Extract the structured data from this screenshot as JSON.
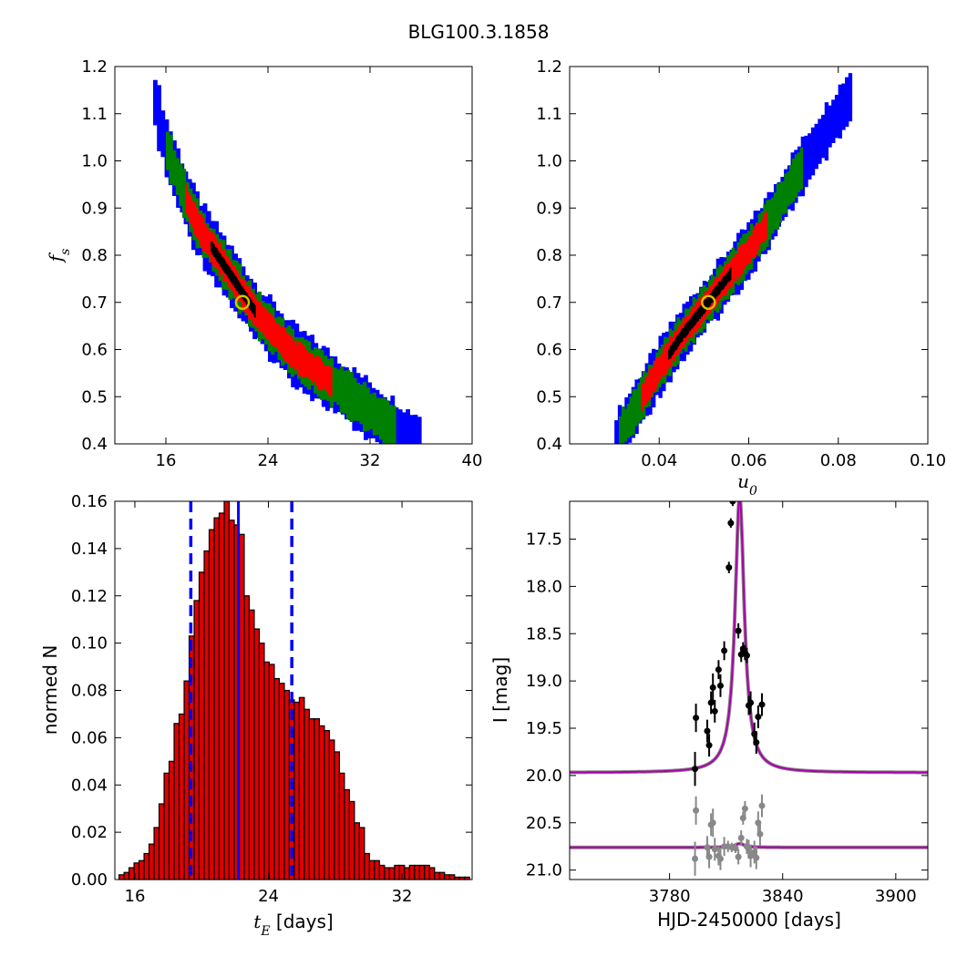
{
  "figure": {
    "title": "BLG100.3.1858",
    "colors": {
      "outer": "#0000ff",
      "mid": "#008000",
      "inner": "#ff0000",
      "core": "#000000",
      "hist_bar": "#dd0000",
      "dash": "#0000ff",
      "model": "#aa00aa",
      "data_black": "#000000",
      "data_gray": "#888888",
      "marker": "#d4c200"
    }
  },
  "chart_data": [
    {
      "id": "panel1",
      "type": "heatmap",
      "xlabel": "",
      "ylabel": "f_s",
      "xlim": [
        12,
        40
      ],
      "ylim": [
        0.4,
        1.2
      ],
      "xticks": [
        "16",
        "24",
        "32",
        "40"
      ],
      "yticks": [
        "0.4",
        "0.5",
        "0.6",
        "0.7",
        "0.8",
        "0.9",
        "1.0",
        "1.1",
        "1.2"
      ],
      "ridge": [
        [
          15.0,
          1.14
        ],
        [
          16.0,
          1.03
        ],
        [
          17.0,
          0.96
        ],
        [
          18.0,
          0.89
        ],
        [
          19.0,
          0.84
        ],
        [
          20.0,
          0.8
        ],
        [
          21.0,
          0.76
        ],
        [
          22.0,
          0.72
        ],
        [
          23.0,
          0.68
        ],
        [
          24.0,
          0.65
        ],
        [
          25.0,
          0.62
        ],
        [
          26.0,
          0.59
        ],
        [
          27.0,
          0.57
        ],
        [
          28.0,
          0.55
        ],
        [
          29.0,
          0.53
        ],
        [
          30.0,
          0.51
        ],
        [
          31.0,
          0.49
        ],
        [
          32.0,
          0.47
        ],
        [
          33.0,
          0.45
        ],
        [
          34.0,
          0.43
        ],
        [
          35.0,
          0.41
        ],
        [
          36.0,
          0.4
        ]
      ],
      "widths": [
        0.012,
        0.03,
        0.045,
        0.06
      ],
      "core_range": [
        19.5,
        23.0
      ],
      "inner_range": [
        17.5,
        29.0
      ],
      "mid_range": [
        16.0,
        34.0
      ],
      "best_fit": [
        22.0,
        0.7
      ]
    },
    {
      "id": "panel2",
      "type": "heatmap",
      "xlabel": "u_0",
      "ylabel": "",
      "xlim": [
        0.02,
        0.1
      ],
      "ylim": [
        0.4,
        1.2
      ],
      "xticks": [
        "0.04",
        "0.06",
        "0.08",
        "0.10"
      ],
      "yticks": [
        "0.4",
        "0.5",
        "0.6",
        "0.7",
        "0.8",
        "0.9",
        "1.0",
        "1.1",
        "1.2"
      ],
      "ridge": [
        [
          0.03,
          0.4
        ],
        [
          0.035,
          0.48
        ],
        [
          0.04,
          0.56
        ],
        [
          0.045,
          0.63
        ],
        [
          0.05,
          0.69
        ],
        [
          0.055,
          0.75
        ],
        [
          0.06,
          0.81
        ],
        [
          0.065,
          0.88
        ],
        [
          0.07,
          0.96
        ],
        [
          0.075,
          1.03
        ],
        [
          0.08,
          1.1
        ],
        [
          0.083,
          1.14
        ]
      ],
      "widths": [
        0.012,
        0.028,
        0.042,
        0.055
      ],
      "core_range": [
        0.042,
        0.056
      ],
      "inner_range": [
        0.036,
        0.064
      ],
      "mid_range": [
        0.031,
        0.072
      ],
      "best_fit": [
        0.051,
        0.7
      ]
    },
    {
      "id": "panel3",
      "type": "bar",
      "xlabel": "t_E [days]",
      "ylabel": "normed N",
      "xlim": [
        14.8,
        36.2
      ],
      "ylim": [
        0.0,
        0.16
      ],
      "xticks": [
        "16",
        "24",
        "32"
      ],
      "yticks": [
        "0.00",
        "0.02",
        "0.04",
        "0.06",
        "0.08",
        "0.10",
        "0.12",
        "0.14",
        "0.16"
      ],
      "x": [
        15.2,
        15.5,
        15.8,
        16.1,
        16.4,
        16.7,
        17.0,
        17.3,
        17.6,
        17.9,
        18.2,
        18.5,
        18.8,
        19.1,
        19.4,
        19.7,
        20.0,
        20.3,
        20.6,
        20.9,
        21.2,
        21.5,
        21.8,
        22.1,
        22.4,
        22.7,
        23.0,
        23.3,
        23.6,
        23.9,
        24.2,
        24.5,
        24.8,
        25.1,
        25.4,
        25.7,
        26.0,
        26.3,
        26.6,
        26.9,
        27.2,
        27.5,
        27.8,
        28.1,
        28.4,
        28.7,
        29.0,
        29.3,
        29.6,
        29.9,
        30.2,
        30.5,
        30.8,
        31.1,
        31.4,
        31.7,
        32.0,
        32.3,
        32.6,
        32.9,
        33.2,
        33.5,
        33.8,
        34.1,
        34.4,
        34.7,
        35.0,
        35.3,
        35.6,
        35.9
      ],
      "values": [
        0.002,
        0.003,
        0.005,
        0.007,
        0.008,
        0.011,
        0.015,
        0.022,
        0.032,
        0.045,
        0.05,
        0.066,
        0.07,
        0.084,
        0.103,
        0.118,
        0.13,
        0.139,
        0.148,
        0.153,
        0.155,
        0.16,
        0.152,
        0.15,
        0.146,
        0.12,
        0.114,
        0.106,
        0.1,
        0.092,
        0.091,
        0.085,
        0.083,
        0.08,
        0.076,
        0.075,
        0.077,
        0.072,
        0.068,
        0.068,
        0.065,
        0.063,
        0.059,
        0.054,
        0.045,
        0.038,
        0.033,
        0.024,
        0.022,
        0.011,
        0.008,
        0.008,
        0.006,
        0.005,
        0.005,
        0.006,
        0.006,
        0.005,
        0.006,
        0.006,
        0.006,
        0.006,
        0.005,
        0.003,
        0.003,
        0.002,
        0.002,
        0.001,
        0.001,
        0.001
      ],
      "bar_width": 0.3,
      "median": 22.2,
      "dashed": [
        19.35,
        25.4
      ]
    },
    {
      "id": "panel4",
      "type": "line",
      "xlabel": "HJD-2450000 [days]",
      "ylabel": "I [mag]",
      "xlim": [
        3727,
        3917
      ],
      "ylim": [
        21.1,
        17.1
      ],
      "xticks": [
        "3780",
        "3840",
        "3900"
      ],
      "yticks": [
        "17.5",
        "18.0",
        "18.5",
        "19.0",
        "19.5",
        "20.0",
        "20.5",
        "21.0"
      ],
      "model": {
        "t0": 3817.2,
        "baseline": 19.97,
        "peak": 17.05,
        "tau": 3.0,
        "tau2": 2.9,
        "baseline2": 20.76,
        "peak_rise": 0.04
      },
      "points_black": [
        [
          3794.0,
          19.39,
          0.15
        ],
        [
          3793.5,
          19.93,
          0.18
        ],
        [
          3800.0,
          19.53,
          0.12
        ],
        [
          3801.0,
          19.68,
          0.12
        ],
        [
          3802.0,
          19.23,
          0.12
        ],
        [
          3803.0,
          19.07,
          0.15
        ],
        [
          3804.0,
          19.32,
          0.12
        ],
        [
          3806.0,
          18.88,
          0.1
        ],
        [
          3807.0,
          19.05,
          0.12
        ],
        [
          3809.0,
          18.68,
          0.1
        ],
        [
          3811.5,
          17.8,
          0.06
        ],
        [
          3812.5,
          17.33,
          0.05
        ],
        [
          3813.5,
          17.1,
          0.05
        ],
        [
          3816.5,
          18.47,
          0.08
        ],
        [
          3818.0,
          18.72,
          0.08
        ],
        [
          3819.0,
          18.66,
          0.07
        ],
        [
          3820.0,
          18.7,
          0.08
        ],
        [
          3821.0,
          18.73,
          0.08
        ],
        [
          3822.0,
          19.26,
          0.1
        ],
        [
          3823.0,
          19.23,
          0.12
        ],
        [
          3825.0,
          19.56,
          0.12
        ],
        [
          3826.0,
          19.65,
          0.12
        ],
        [
          3827.0,
          19.38,
          0.12
        ],
        [
          3829.0,
          19.25,
          0.12
        ]
      ],
      "points_gray": [
        [
          3794.0,
          20.37,
          0.15
        ],
        [
          3793.5,
          20.88,
          0.18
        ],
        [
          3800.0,
          20.76,
          0.12
        ],
        [
          3801.0,
          20.86,
          0.12
        ],
        [
          3802.0,
          20.52,
          0.12
        ],
        [
          3803.0,
          20.5,
          0.15
        ],
        [
          3804.0,
          20.78,
          0.12
        ],
        [
          3806.0,
          20.85,
          0.1
        ],
        [
          3807.0,
          20.88,
          0.12
        ],
        [
          3809.0,
          20.75,
          0.1
        ],
        [
          3811.0,
          20.75,
          0.06
        ],
        [
          3813.0,
          20.76,
          0.05
        ],
        [
          3815.0,
          20.77,
          0.05
        ],
        [
          3816.5,
          20.86,
          0.08
        ],
        [
          3818.0,
          20.66,
          0.08
        ],
        [
          3819.0,
          20.45,
          0.07
        ],
        [
          3820.0,
          20.35,
          0.08
        ],
        [
          3821.0,
          20.75,
          0.08
        ],
        [
          3822.0,
          20.78,
          0.1
        ],
        [
          3823.0,
          20.85,
          0.12
        ],
        [
          3825.0,
          20.81,
          0.12
        ],
        [
          3826.0,
          20.87,
          0.12
        ],
        [
          3827.0,
          20.5,
          0.12
        ],
        [
          3828.0,
          20.62,
          0.12
        ],
        [
          3829.0,
          20.32,
          0.12
        ]
      ]
    }
  ]
}
